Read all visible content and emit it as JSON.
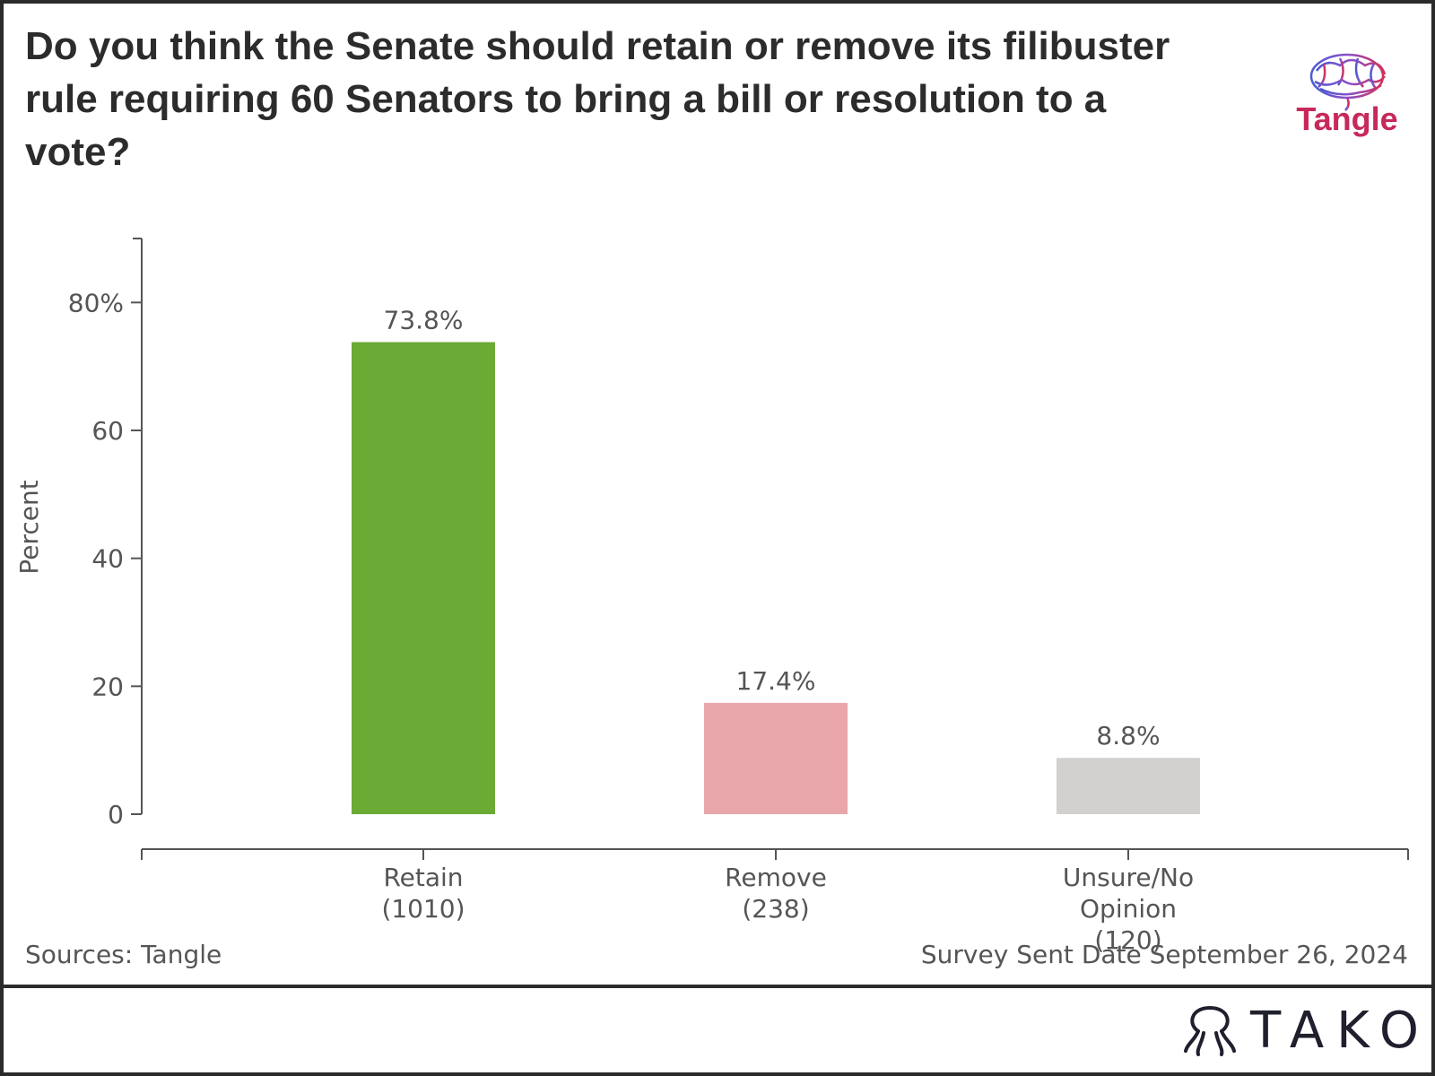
{
  "title": "Do you think the Senate should retain or remove its filibuster rule requiring 60 Senators to bring a bill or resolution to a vote?",
  "logo": {
    "text": "Tangle",
    "icon": "brain-logo-icon"
  },
  "footer": {
    "sources": "Sources: Tangle",
    "survey_date": "Survey Sent Date September 26, 2024",
    "brand": "TAKO",
    "brand_icon": "tako-octopus-icon"
  },
  "colors": {
    "retain": "#6aaa35",
    "remove": "#e8a5aa",
    "unsure": "#d3d0d0",
    "axis": "#555555",
    "logo_text": "#c8285a"
  },
  "chart_data": {
    "type": "bar",
    "ylabel": "Percent",
    "xlabel": "",
    "ylim": [
      0,
      90
    ],
    "yticks": [
      {
        "value": 0,
        "label": "0"
      },
      {
        "value": 20,
        "label": "20"
      },
      {
        "value": 40,
        "label": "40"
      },
      {
        "value": 60,
        "label": "60"
      },
      {
        "value": 80,
        "label": "80%"
      }
    ],
    "categories": [
      {
        "lines": [
          "Retain",
          "(1010)"
        ],
        "value": 73.8,
        "label": "73.8%",
        "color": "#6aaa35"
      },
      {
        "lines": [
          "Remove",
          "(238)"
        ],
        "value": 17.4,
        "label": "17.4%",
        "color": "#e8a5aa"
      },
      {
        "lines": [
          "Unsure/No",
          "Opinion",
          "(120)"
        ],
        "value": 8.8,
        "label": "8.8%",
        "color": "#d3d0d0"
      }
    ],
    "grid": false,
    "legend": "none"
  }
}
